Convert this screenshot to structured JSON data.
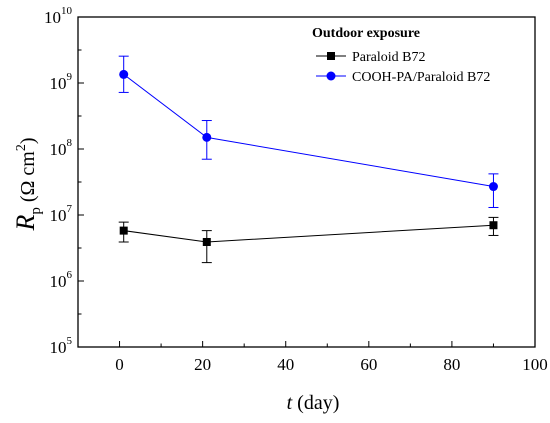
{
  "chart_data": {
    "type": "line",
    "title": "",
    "xlabel": {
      "var": "t",
      "rest": " (day)"
    },
    "ylabel": {
      "var": "R",
      "sub": "p",
      "pre": " (Ω cm",
      "sup": "2",
      "post": ")"
    },
    "xlim": [
      -10,
      100
    ],
    "xticks": [
      0,
      20,
      40,
      60,
      80,
      100
    ],
    "ylog": true,
    "ylim": [
      100000,
      10000000000
    ],
    "yticks": [
      {
        "value": 100000,
        "base": "10",
        "exp": "5"
      },
      {
        "value": 1000000,
        "base": "10",
        "exp": "6"
      },
      {
        "value": 10000000,
        "base": "10",
        "exp": "7"
      },
      {
        "value": 100000000,
        "base": "10",
        "exp": "8"
      },
      {
        "value": 1000000000,
        "base": "10",
        "exp": "9"
      },
      {
        "value": 10000000000,
        "base": "10",
        "exp": "10"
      }
    ],
    "legend": {
      "title": "Outdoor exposure",
      "placement": "top-right"
    },
    "series": [
      {
        "name": "Paraloid B72",
        "color": "#000000",
        "marker": "square",
        "x": [
          1,
          21,
          90
        ],
        "y": [
          5800000,
          3900000,
          7000000
        ],
        "err_low": [
          3900000,
          1900000,
          4900000
        ],
        "err_high": [
          7800000,
          5800000,
          9200000
        ]
      },
      {
        "name": "COOH-PA/Paraloid B72",
        "color": "#0000ff",
        "marker": "circle",
        "x": [
          1,
          21,
          90
        ],
        "y": [
          1350000000,
          150000000,
          27000000
        ],
        "err_low": [
          720000000,
          70000000,
          13000000
        ],
        "err_high": [
          2550000000,
          270000000,
          42000000
        ]
      }
    ]
  }
}
